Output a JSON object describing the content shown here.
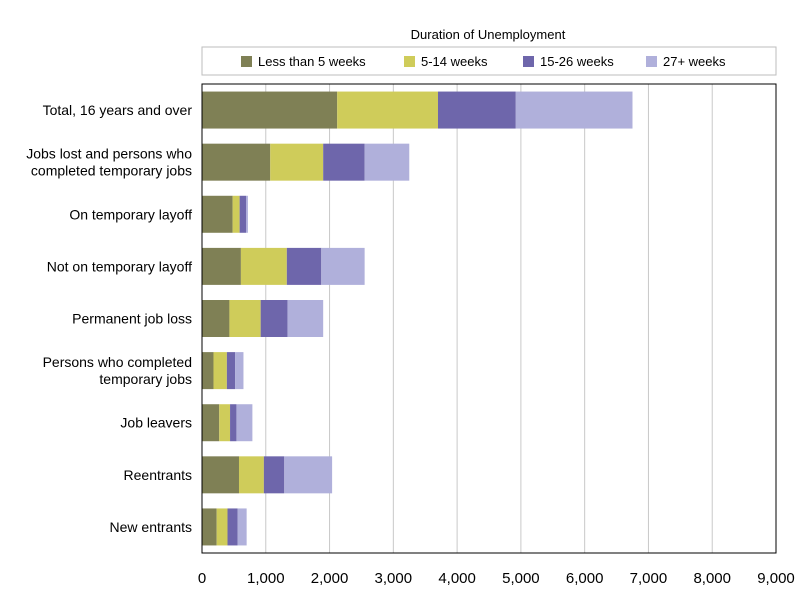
{
  "chart_data": {
    "type": "bar",
    "orientation": "horizontal",
    "stacked": true,
    "legend_title": "Duration of Unemployment",
    "legend_position": "top",
    "grid": true,
    "xlim": [
      0,
      9000
    ],
    "x_ticks": [
      "0",
      "1,000",
      "2,000",
      "3,000",
      "4,000",
      "5,000",
      "6,000",
      "7,000",
      "8,000",
      "9,000"
    ],
    "x_tick_values": [
      0,
      1000,
      2000,
      3000,
      4000,
      5000,
      6000,
      7000,
      8000,
      9000
    ],
    "categories": [
      [
        "Total, 16 years and over"
      ],
      [
        "Jobs lost and persons who",
        "completed temporary jobs"
      ],
      [
        "On temporary layoff"
      ],
      [
        "Not on temporary layoff"
      ],
      [
        "Permanent job loss"
      ],
      [
        "Persons who completed",
        "temporary jobs"
      ],
      [
        "Job leavers"
      ],
      [
        "Reentrants"
      ],
      [
        "New entrants"
      ]
    ],
    "series": [
      {
        "name": "Less than 5 weeks",
        "color": "#7f8055",
        "values": [
          2120,
          1070,
          480,
          610,
          430,
          180,
          270,
          580,
          230
        ]
      },
      {
        "name": "5-14 weeks",
        "color": "#cfcc5a",
        "values": [
          1580,
          830,
          110,
          720,
          490,
          210,
          170,
          390,
          170
        ]
      },
      {
        "name": "15-26 weeks",
        "color": "#6e66ab",
        "values": [
          1220,
          650,
          100,
          540,
          420,
          130,
          100,
          320,
          160
        ]
      },
      {
        "name": "27+ weeks",
        "color": "#b0b0db",
        "values": [
          1830,
          700,
          30,
          680,
          560,
          130,
          250,
          750,
          140
        ]
      }
    ]
  }
}
